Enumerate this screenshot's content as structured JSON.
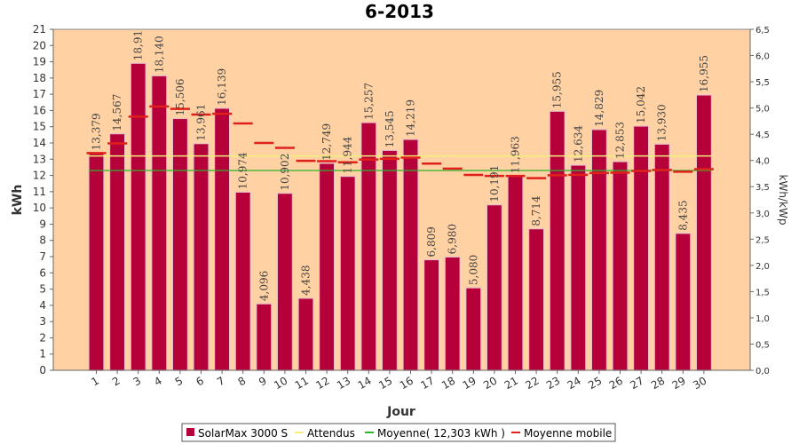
{
  "chart_data": {
    "type": "bar",
    "title": "6-2013",
    "xlabel": "Jour",
    "ylabel": "kWh",
    "y2label": "kWh/kWp",
    "ylim": [
      0,
      21
    ],
    "y2lim": [
      0,
      6.5
    ],
    "y_ticks": [
      "0",
      "1",
      "2",
      "3",
      "4",
      "5",
      "6",
      "7",
      "8",
      "9",
      "10",
      "11",
      "12",
      "13",
      "14",
      "15",
      "16",
      "17",
      "18",
      "19",
      "20",
      "21"
    ],
    "y2_ticks": [
      "0,0",
      "0,5",
      "1,0",
      "1,5",
      "2,0",
      "2,5",
      "3,0",
      "3,5",
      "4,0",
      "4,5",
      "5,0",
      "5,5",
      "6,0",
      "6,5"
    ],
    "categories": [
      "1",
      "2",
      "3",
      "4",
      "5",
      "6",
      "7",
      "8",
      "9",
      "10",
      "11",
      "12",
      "13",
      "14",
      "15",
      "16",
      "17",
      "18",
      "19",
      "20",
      "21",
      "22",
      "23",
      "24",
      "25",
      "26",
      "27",
      "28",
      "29",
      "30"
    ],
    "series": [
      {
        "name": "SolarMax 3000 S",
        "kind": "bar",
        "color": "#b5003a",
        "values": [
          13.379,
          14.567,
          18.91,
          18.14,
          15.506,
          13.961,
          16.139,
          10.974,
          4.096,
          10.902,
          4.438,
          12.749,
          11.944,
          15.257,
          13.545,
          14.219,
          6.809,
          6.98,
          5.08,
          10.191,
          11.963,
          8.714,
          15.955,
          12.634,
          14.829,
          12.853,
          15.042,
          13.93,
          8.435,
          16.955
        ],
        "labels": [
          "13,379",
          "14,567",
          "18,91",
          "18,140",
          "15,506",
          "13,961",
          "16,139",
          "10,974",
          "4,096",
          "10,902",
          "4,438",
          "12,749",
          "11,944",
          "15,257",
          "13,545",
          "14,219",
          "6,809",
          "6,980",
          "5,080",
          "10,191",
          "11,963",
          "8,714",
          "15,955",
          "12,634",
          "14,829",
          "12,853",
          "15,042",
          "13,930",
          "8,435",
          "16,955"
        ]
      },
      {
        "name": "Attendus",
        "kind": "line",
        "color": "#f2f07a",
        "value": 13.2
      },
      {
        "name": "Moyenne( 12,303 kWh )",
        "kind": "line",
        "color": "#2db52d",
        "value": 12.303
      },
      {
        "name": "Moyenne mobile",
        "kind": "step",
        "color": "#e0201a",
        "values": [
          13.38,
          13.97,
          15.62,
          16.25,
          16.1,
          15.75,
          15.8,
          15.2,
          14.0,
          13.7,
          12.9,
          12.88,
          12.81,
          12.98,
          13.02,
          13.1,
          12.73,
          12.42,
          12.03,
          11.97,
          11.97,
          11.83,
          12.01,
          12.04,
          12.15,
          12.17,
          12.28,
          12.34,
          12.23,
          12.39
        ]
      }
    ],
    "legend_placement": "bottom",
    "grid": false
  }
}
